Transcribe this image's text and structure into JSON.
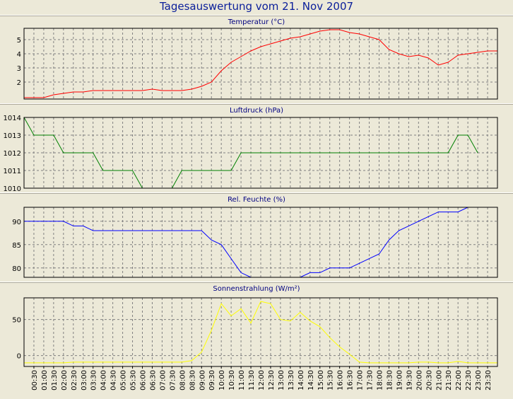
{
  "page_title": "Tagesauswertung vom 21. Nov 2007",
  "x_tick_labels": [
    "00:30",
    "01:00",
    "01:30",
    "02:00",
    "02:30",
    "03:00",
    "03:30",
    "04:00",
    "04:30",
    "05:00",
    "05:30",
    "06:00",
    "06:30",
    "07:00",
    "07:30",
    "08:00",
    "08:30",
    "09:00",
    "09:30",
    "10:00",
    "10:30",
    "11:00",
    "11:30",
    "12:00",
    "12:30",
    "13:00",
    "13:30",
    "14:00",
    "14:30",
    "15:00",
    "15:30",
    "16:00",
    "16:30",
    "17:00",
    "17:30",
    "18:00",
    "18:30",
    "19:00",
    "19:30",
    "20:00",
    "20:30",
    "21:00",
    "21:30",
    "22:00",
    "22:30",
    "23:00",
    "23:30"
  ],
  "chart_data": [
    {
      "type": "line",
      "title": "Temperatur (°C)",
      "color": "#ff0000",
      "ylim": [
        0.8,
        5.8
      ],
      "y_ticks": [
        2,
        3,
        4,
        5
      ],
      "grid": true,
      "x": [
        "00:00",
        "00:30",
        "01:00",
        "01:30",
        "02:00",
        "02:30",
        "03:00",
        "03:30",
        "04:00",
        "04:30",
        "05:00",
        "05:30",
        "06:00",
        "06:30",
        "07:00",
        "07:30",
        "08:00",
        "08:30",
        "09:00",
        "09:30",
        "10:00",
        "10:30",
        "11:00",
        "11:30",
        "12:00",
        "12:30",
        "13:00",
        "13:30",
        "14:00",
        "14:30",
        "15:00",
        "15:30",
        "16:00",
        "16:30",
        "17:00",
        "17:30",
        "18:00",
        "18:30",
        "19:00",
        "19:30",
        "20:00",
        "20:30",
        "21:00",
        "21:30",
        "22:00",
        "22:30",
        "23:00",
        "23:30",
        "24:00"
      ],
      "values": [
        0.9,
        0.9,
        0.9,
        1.1,
        1.2,
        1.3,
        1.3,
        1.4,
        1.4,
        1.4,
        1.4,
        1.4,
        1.4,
        1.5,
        1.4,
        1.4,
        1.4,
        1.5,
        1.7,
        2.0,
        2.8,
        3.4,
        3.8,
        4.2,
        4.5,
        4.7,
        4.9,
        5.1,
        5.2,
        5.4,
        5.6,
        5.7,
        5.7,
        5.5,
        5.4,
        5.2,
        5.0,
        4.3,
        4.0,
        3.8,
        3.9,
        3.7,
        3.2,
        3.4,
        3.9,
        4.0,
        4.1,
        4.2,
        4.2
      ]
    },
    {
      "type": "line",
      "title": "Luftdruck (hPa)",
      "color": "#008000",
      "ylim": [
        1010,
        1014
      ],
      "y_ticks": [
        1010,
        1011,
        1012,
        1013,
        1014
      ],
      "grid": true,
      "x": [
        "00:00",
        "00:30",
        "01:00",
        "01:30",
        "02:00",
        "03:30",
        "04:00",
        "05:30",
        "06:00",
        "07:30",
        "08:00",
        "10:30",
        "11:00",
        "21:30",
        "22:00",
        "22:30",
        "23:00"
      ],
      "values": [
        1014,
        1013,
        1013,
        1013,
        1012,
        1012,
        1011,
        1011,
        1010,
        1010,
        1011,
        1011,
        1012,
        1012,
        1013,
        1013,
        1012
      ]
    },
    {
      "type": "line",
      "title": "Rel. Feuchte (%)",
      "color": "#0000ff",
      "ylim": [
        78,
        93
      ],
      "y_ticks": [
        80,
        85,
        90
      ],
      "grid": true,
      "x": [
        "00:00",
        "02:00",
        "02:30",
        "03:00",
        "03:30",
        "09:00",
        "09:30",
        "10:00",
        "10:30",
        "11:00",
        "11:30",
        "12:00",
        "12:30",
        "13:00",
        "13:30",
        "14:00",
        "14:30",
        "15:00",
        "15:30",
        "16:00",
        "16:30",
        "17:00",
        "17:30",
        "18:00",
        "18:30",
        "19:00",
        "19:30",
        "20:00",
        "20:30",
        "21:00",
        "21:30",
        "22:00",
        "22:30"
      ],
      "values": [
        90,
        90,
        89,
        89,
        88,
        88,
        86,
        85,
        82,
        79,
        78,
        78,
        78,
        77,
        77,
        78,
        79,
        79,
        80,
        80,
        80,
        81,
        82,
        83,
        86,
        88,
        89,
        90,
        91,
        92,
        92,
        92,
        93
      ]
    },
    {
      "type": "line",
      "title": "Sonnenstrahlung (W/m²)",
      "color": "#ffff00",
      "ylim": [
        -15,
        80
      ],
      "y_ticks": [
        0,
        50
      ],
      "grid": true,
      "x": [
        "00:00",
        "00:30",
        "01:00",
        "01:30",
        "02:00",
        "02:30",
        "03:00",
        "03:30",
        "04:00",
        "04:30",
        "05:00",
        "05:30",
        "06:00",
        "06:30",
        "07:00",
        "07:30",
        "08:00",
        "08:30",
        "09:00",
        "09:30",
        "10:00",
        "10:30",
        "11:00",
        "11:30",
        "12:00",
        "12:30",
        "13:00",
        "13:30",
        "14:00",
        "14:30",
        "15:00",
        "15:30",
        "16:00",
        "16:30",
        "17:00",
        "17:30",
        "18:00",
        "18:30",
        "19:00",
        "19:30",
        "20:00",
        "20:30",
        "21:00",
        "21:30",
        "22:00",
        "22:30",
        "23:00",
        "23:30",
        "24:00"
      ],
      "values": [
        -10,
        -10,
        -10,
        -10,
        -10,
        -9,
        -9,
        -9,
        -9,
        -9,
        -9,
        -9,
        -9,
        -9,
        -9,
        -9,
        -9,
        -7,
        5,
        35,
        72,
        55,
        65,
        45,
        75,
        72,
        50,
        48,
        60,
        48,
        40,
        25,
        12,
        2,
        -9,
        -10,
        -10,
        -10,
        -10,
        -10,
        -9,
        -9,
        -10,
        -10,
        -8,
        -10,
        -10,
        -10,
        -10
      ]
    }
  ]
}
